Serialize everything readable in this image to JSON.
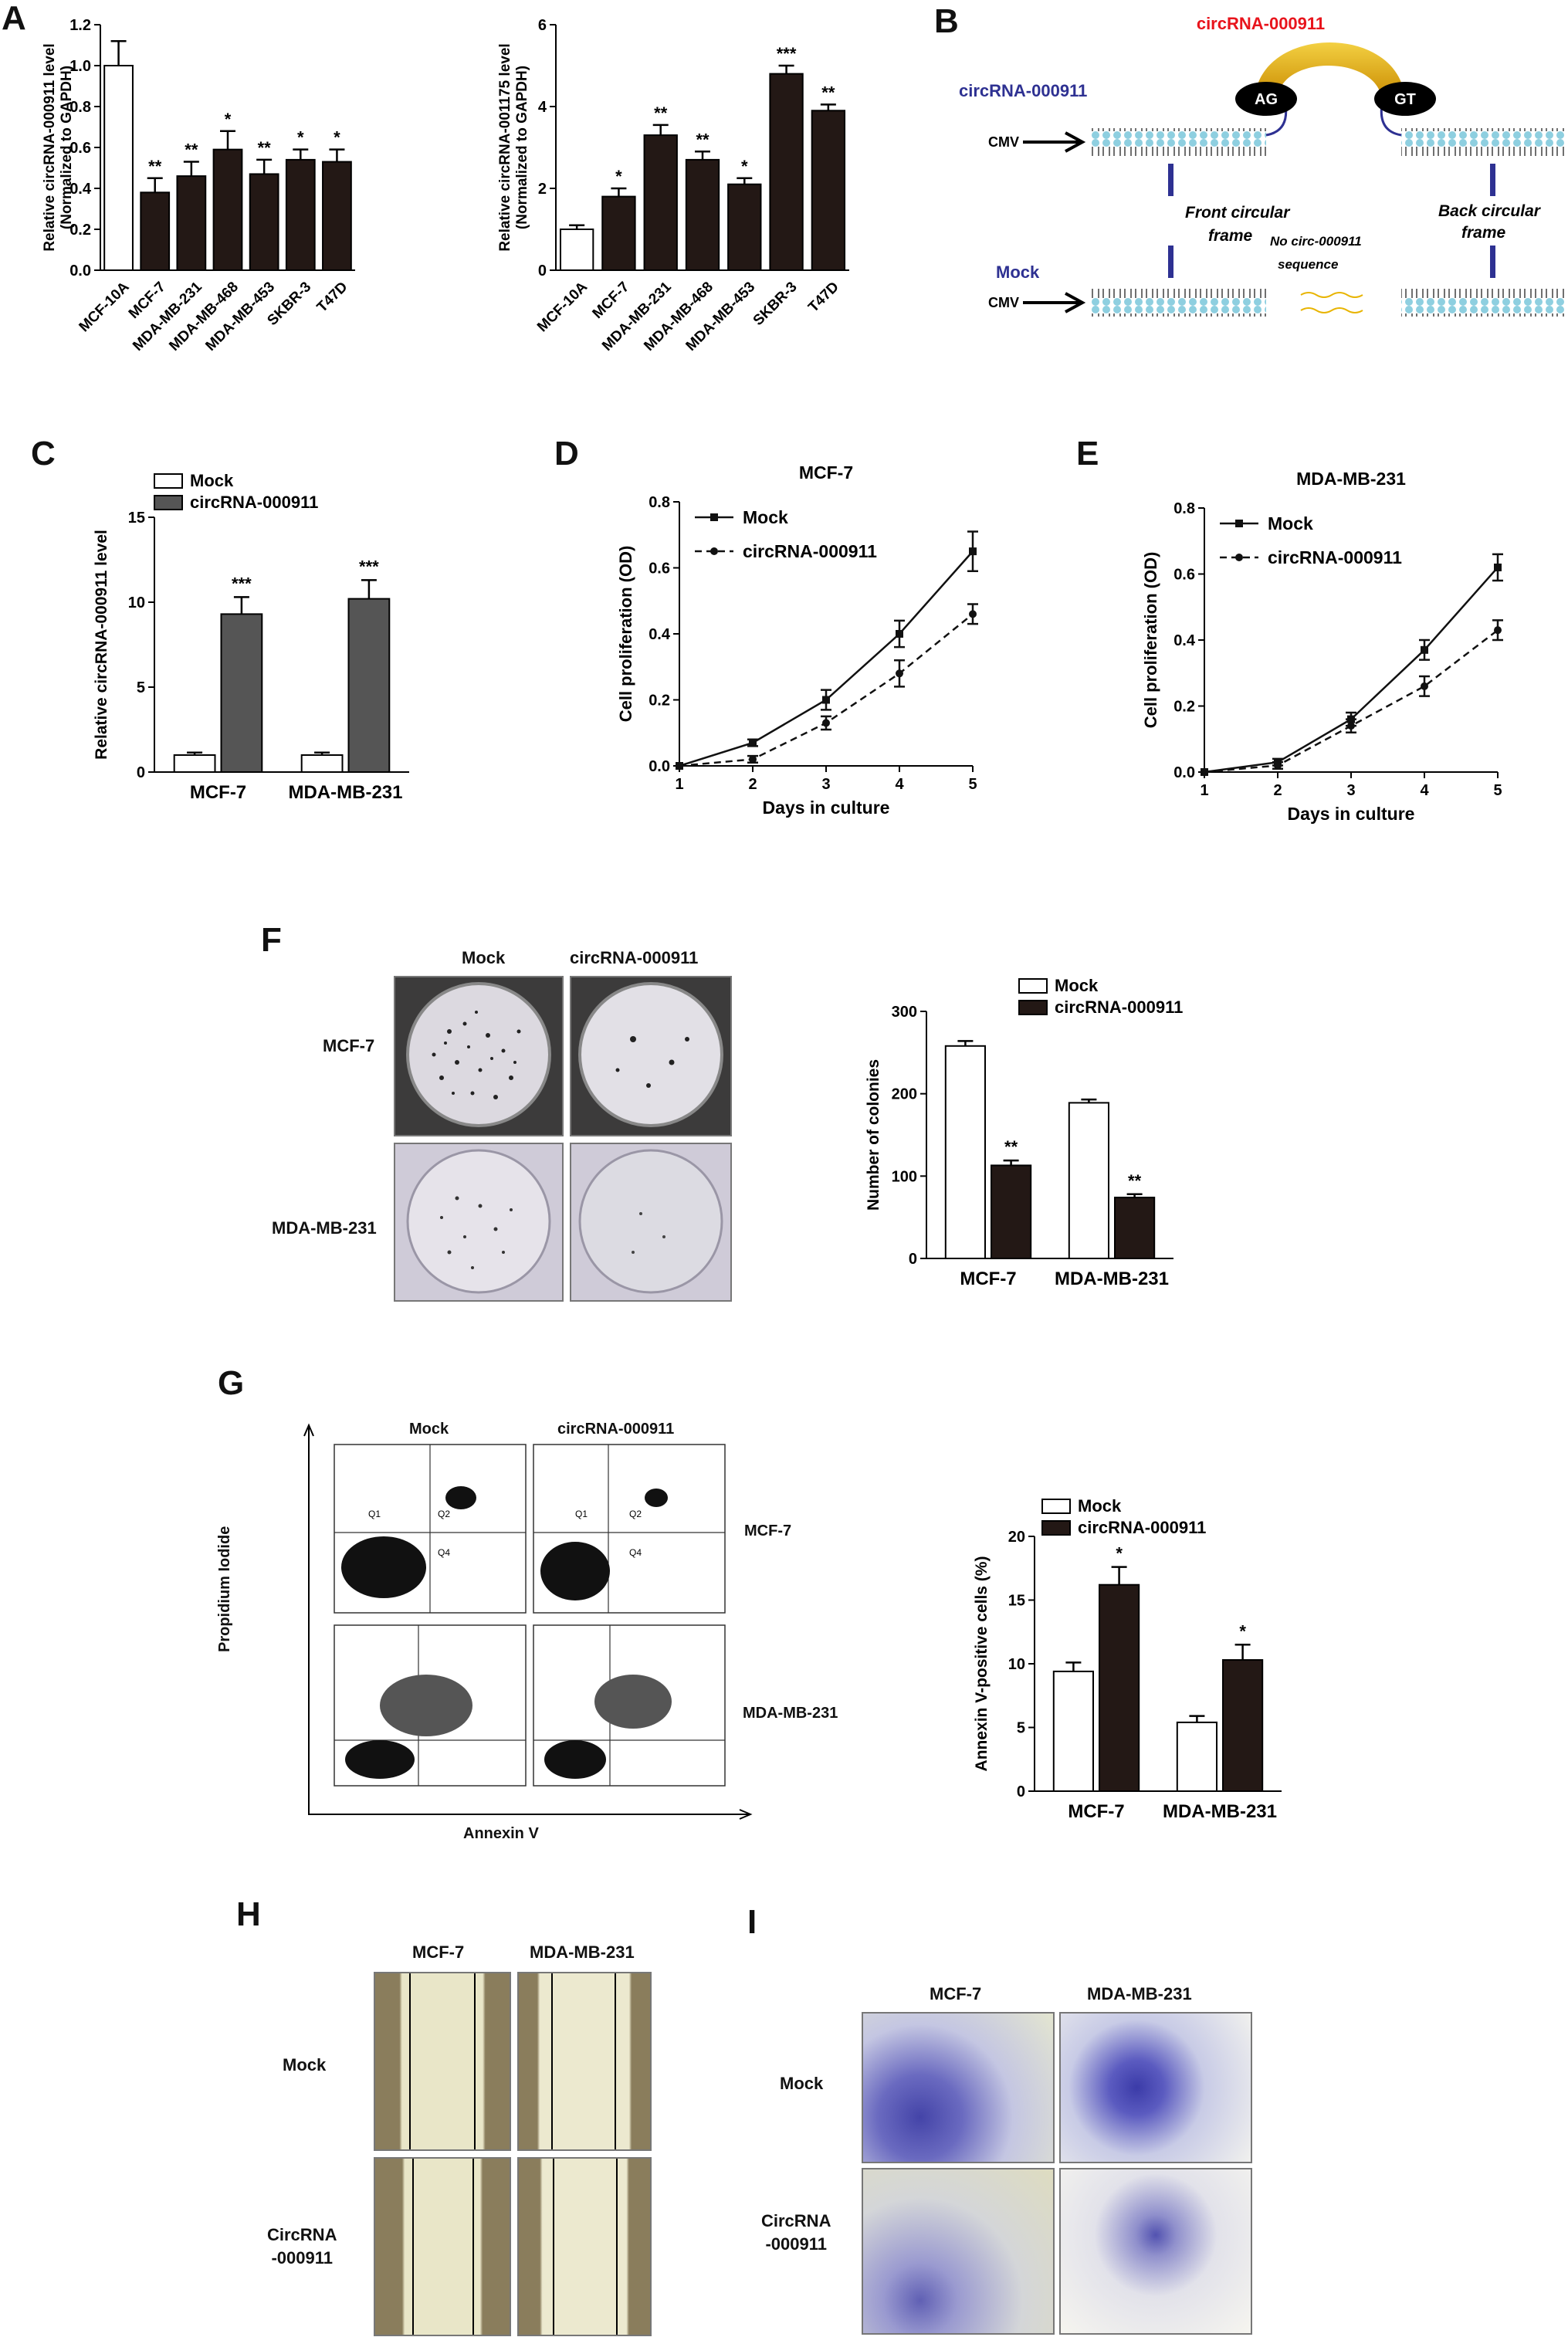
{
  "panels": {
    "A": "A",
    "B": "B",
    "C": "C",
    "D": "D",
    "E": "E",
    "F": "F",
    "G": "G",
    "H": "H",
    "I": "I"
  },
  "panel_B": {
    "top_red_label": "circRNA-000911",
    "construct_label": "circRNA-000911",
    "mock_label": "Mock",
    "cmv_label": "CMV",
    "ag_label": "AG",
    "gt_label": "GT",
    "front_frame": [
      "Front circular",
      "frame"
    ],
    "back_frame": [
      "Back circular",
      "frame"
    ],
    "no_seq": [
      "No circ-000911",
      "sequence"
    ],
    "colors": {
      "red": "#e8141c",
      "navy": "#2e3192",
      "gold": "#e8b400",
      "dna": "#8ecfe0"
    }
  },
  "panel_F": {
    "col_labels": [
      "Mock",
      "circRNA-000911"
    ],
    "row_labels": [
      "MCF-7",
      "MDA-MB-231"
    ]
  },
  "panel_G": {
    "col_labels": [
      "Mock",
      "circRNA-000911"
    ],
    "row_labels": [
      "MCF-7",
      "MDA-MB-231"
    ],
    "x_axis": "Annexin V",
    "y_axis": "Propidium Iodide",
    "quadrants": [
      "Q1",
      "Q2",
      "Q4"
    ]
  },
  "panel_H": {
    "col_labels": [
      "MCF-7",
      "MDA-MB-231"
    ],
    "row_labels": [
      "Mock",
      "CircRNA\n-000911"
    ]
  },
  "panel_I": {
    "col_labels": [
      "MCF-7",
      "MDA-MB-231"
    ],
    "row_labels": [
      "Mock",
      "CircRNA\n-000911"
    ]
  },
  "chart_data": [
    {
      "id": "A1",
      "type": "bar",
      "ylabel": [
        "Relative circRNA-000911 level",
        "(Normalized to GAPDH)"
      ],
      "categories": [
        "MCF-10A",
        "MCF-7",
        "MDA-MB-231",
        "MDA-MB-468",
        "MDA-MB-453",
        "SKBR-3",
        "T47D"
      ],
      "values": [
        1.0,
        0.38,
        0.46,
        0.59,
        0.47,
        0.54,
        0.53
      ],
      "errors": [
        0.12,
        0.07,
        0.07,
        0.09,
        0.07,
        0.05,
        0.06
      ],
      "sig": [
        "",
        "**",
        "**",
        "*",
        "**",
        "*",
        "*"
      ],
      "ylim": [
        0,
        1.2
      ],
      "yticks": [
        "0.0",
        "0.2",
        "0.4",
        "0.6",
        "0.8",
        "1.0",
        "1.2"
      ]
    },
    {
      "id": "A2",
      "type": "bar",
      "ylabel": [
        "Relative circRNA-001175 level",
        "(Normalized to GAPDH)"
      ],
      "categories": [
        "MCF-10A",
        "MCF-7",
        "MDA-MB-231",
        "MDA-MB-468",
        "MDA-MB-453",
        "SKBR-3",
        "T47D"
      ],
      "values": [
        1.0,
        1.8,
        3.3,
        2.7,
        2.1,
        4.8,
        3.9
      ],
      "errors": [
        0.1,
        0.2,
        0.25,
        0.2,
        0.15,
        0.2,
        0.15
      ],
      "sig": [
        "",
        "*",
        "**",
        "**",
        "*",
        "***",
        "**"
      ],
      "ylim": [
        0,
        6
      ],
      "yticks": [
        "0",
        "2",
        "4",
        "6"
      ]
    },
    {
      "id": "C",
      "type": "bar",
      "ylabel": [
        "Relative circRNA-000911 level"
      ],
      "categories": [
        "MCF-7",
        "MDA-MB-231"
      ],
      "series": [
        {
          "name": "Mock",
          "values": [
            1.0,
            1.0
          ],
          "errors": [
            0.15,
            0.15
          ],
          "color": "#ffffff"
        },
        {
          "name": "circRNA-000911",
          "values": [
            9.3,
            10.2
          ],
          "errors": [
            1.0,
            1.1
          ],
          "color": "#555555"
        }
      ],
      "sig": [
        "***",
        "***"
      ],
      "ylim": [
        0,
        15
      ],
      "yticks": [
        "0",
        "5",
        "10",
        "15"
      ]
    },
    {
      "id": "D",
      "type": "line",
      "title": "MCF-7",
      "xlabel": "Days in culture",
      "ylabel": "Cell proliferation (OD)",
      "x": [
        1,
        2,
        3,
        4,
        5
      ],
      "series": [
        {
          "name": "Mock",
          "values": [
            0.0,
            0.07,
            0.2,
            0.4,
            0.65
          ],
          "errors": [
            0,
            0.01,
            0.03,
            0.04,
            0.06
          ]
        },
        {
          "name": "circRNA-000911",
          "values": [
            0.0,
            0.02,
            0.13,
            0.28,
            0.46
          ],
          "errors": [
            0,
            0.01,
            0.02,
            0.04,
            0.03
          ]
        }
      ],
      "ylim": [
        0,
        0.8
      ],
      "yticks": [
        "0.0",
        "0.2",
        "0.4",
        "0.6",
        "0.8"
      ],
      "xticks": [
        "1",
        "2",
        "3",
        "4",
        "5"
      ]
    },
    {
      "id": "E",
      "type": "line",
      "title": "MDA-MB-231",
      "xlabel": "Days in culture",
      "ylabel": "Cell proliferation (OD)",
      "x": [
        1,
        2,
        3,
        4,
        5
      ],
      "series": [
        {
          "name": "Mock",
          "values": [
            0.0,
            0.03,
            0.16,
            0.37,
            0.62
          ],
          "errors": [
            0,
            0.01,
            0.02,
            0.03,
            0.04
          ]
        },
        {
          "name": "circRNA-000911",
          "values": [
            0.0,
            0.02,
            0.14,
            0.26,
            0.43
          ],
          "errors": [
            0,
            0.01,
            0.02,
            0.03,
            0.03
          ]
        }
      ],
      "ylim": [
        0,
        0.8
      ],
      "yticks": [
        "0.0",
        "0.2",
        "0.4",
        "0.6",
        "0.8"
      ],
      "xticks": [
        "1",
        "2",
        "3",
        "4",
        "5"
      ]
    },
    {
      "id": "F",
      "type": "bar",
      "ylabel": [
        "Number of colonies"
      ],
      "categories": [
        "MCF-7",
        "MDA-MB-231"
      ],
      "series": [
        {
          "name": "Mock",
          "values": [
            258,
            189
          ],
          "errors": [
            6,
            4
          ],
          "color": "#ffffff"
        },
        {
          "name": "circRNA-000911",
          "values": [
            113,
            74
          ],
          "errors": [
            6,
            4
          ],
          "color": "#231815"
        }
      ],
      "sig": [
        "**",
        "**"
      ],
      "ylim": [
        0,
        300
      ],
      "yticks": [
        "0",
        "100",
        "200",
        "300"
      ]
    },
    {
      "id": "G",
      "type": "bar",
      "ylabel": [
        "Annexin V-positive cells (%)"
      ],
      "categories": [
        "MCF-7",
        "MDA-MB-231"
      ],
      "series": [
        {
          "name": "Mock",
          "values": [
            9.4,
            5.4
          ],
          "errors": [
            0.7,
            0.5
          ],
          "color": "#ffffff"
        },
        {
          "name": "circRNA-000911",
          "values": [
            16.2,
            10.3
          ],
          "errors": [
            1.4,
            1.2
          ],
          "color": "#231815"
        }
      ],
      "sig": [
        "*",
        "*"
      ],
      "ylim": [
        0,
        20
      ],
      "yticks": [
        "0",
        "5",
        "10",
        "15",
        "20"
      ]
    }
  ]
}
